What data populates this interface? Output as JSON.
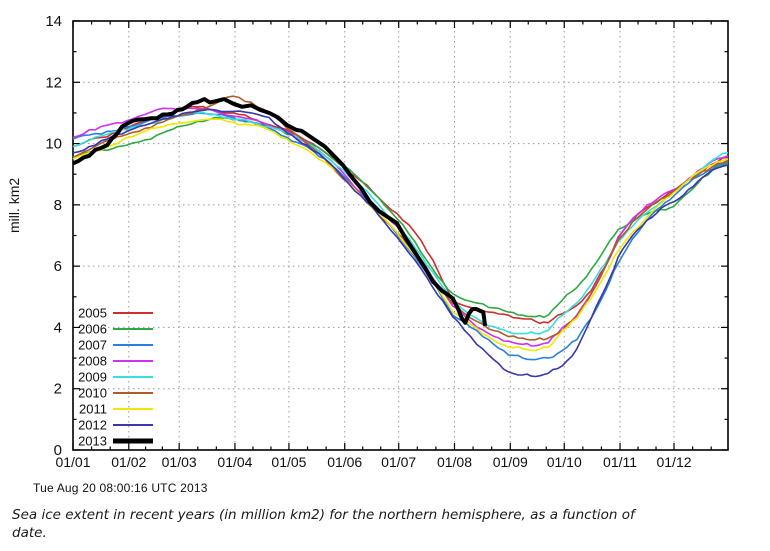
{
  "figure": {
    "background": "#ffffff",
    "footer_timestamp": "Tue Aug 20 08:00:16 UTC 2013",
    "caption": "Sea ice extent in recent years (in million km2) for the northern hemisphere, as a function of date."
  },
  "chart_data": {
    "type": "line",
    "title": "",
    "xlabel": "",
    "ylabel": "mill. km2",
    "ylim": [
      0,
      14
    ],
    "yticks": [
      0,
      2,
      4,
      6,
      8,
      10,
      12,
      14
    ],
    "grid": true,
    "grid_style": "dotted",
    "grid_color": "#9a9a9a",
    "axis_color": "#000000",
    "legend_position": "inside-left-lower",
    "x_axis": {
      "unit": "day-of-year",
      "range": [
        1,
        365
      ],
      "tick_labels": [
        "01/01",
        "01/02",
        "01/03",
        "01/04",
        "01/05",
        "01/06",
        "01/07",
        "01/08",
        "01/09",
        "01/10",
        "01/11",
        "01/12"
      ],
      "tick_days": [
        1,
        32,
        60,
        91,
        121,
        152,
        182,
        213,
        244,
        274,
        305,
        335
      ]
    },
    "series": [
      {
        "name": "2005",
        "color": "#cc2f2f",
        "line_width": 1.6,
        "x": [
          1,
          10,
          20,
          31,
          41,
          51,
          59,
          70,
          80,
          90,
          100,
          110,
          120,
          131,
          141,
          151,
          161,
          171,
          181,
          191,
          201,
          212,
          222,
          232,
          243,
          251,
          258,
          265,
          273,
          281,
          289,
          297,
          304,
          312,
          320,
          328,
          335,
          343,
          351,
          359,
          365
        ],
        "y": [
          9.9,
          10.12,
          10.22,
          10.5,
          10.72,
          10.93,
          11.05,
          11.2,
          11.08,
          11.0,
          10.82,
          10.62,
          10.45,
          10.08,
          9.72,
          9.25,
          8.78,
          8.22,
          7.72,
          7.1,
          6.2,
          4.85,
          4.65,
          4.5,
          4.4,
          4.28,
          4.2,
          4.15,
          4.45,
          4.72,
          5.2,
          6.0,
          6.95,
          7.5,
          7.92,
          8.2,
          8.45,
          8.82,
          9.1,
          9.4,
          9.55
        ]
      },
      {
        "name": "2006",
        "color": "#2eaa44",
        "line_width": 1.6,
        "x": [
          1,
          10,
          20,
          31,
          41,
          51,
          59,
          70,
          80,
          90,
          100,
          110,
          120,
          131,
          141,
          151,
          161,
          171,
          181,
          191,
          201,
          212,
          222,
          232,
          243,
          251,
          258,
          265,
          273,
          281,
          289,
          297,
          304,
          312,
          320,
          328,
          335,
          343,
          351,
          359,
          365
        ],
        "y": [
          9.55,
          9.72,
          9.78,
          9.95,
          10.12,
          10.35,
          10.55,
          10.72,
          10.85,
          10.78,
          10.72,
          10.55,
          10.3,
          10.05,
          9.72,
          9.3,
          8.8,
          8.22,
          7.55,
          6.8,
          5.9,
          5.1,
          4.85,
          4.65,
          4.5,
          4.4,
          4.35,
          4.4,
          4.9,
          5.3,
          5.9,
          6.6,
          7.2,
          7.5,
          7.7,
          7.85,
          7.95,
          8.4,
          8.9,
          9.25,
          9.35
        ]
      },
      {
        "name": "2007",
        "color": "#2a7fdd",
        "line_width": 1.6,
        "x": [
          1,
          10,
          20,
          31,
          41,
          51,
          59,
          70,
          80,
          90,
          100,
          110,
          120,
          131,
          141,
          151,
          161,
          171,
          181,
          191,
          201,
          212,
          222,
          232,
          243,
          251,
          258,
          265,
          273,
          281,
          289,
          297,
          304,
          312,
          320,
          328,
          335,
          343,
          351,
          359,
          365
        ],
        "y": [
          10.15,
          10.28,
          10.4,
          10.55,
          10.7,
          10.85,
          10.9,
          11.0,
          10.95,
          10.85,
          10.7,
          10.5,
          10.2,
          9.9,
          9.5,
          8.95,
          8.35,
          7.72,
          7.05,
          6.3,
          5.5,
          4.4,
          4.0,
          3.6,
          3.1,
          3.0,
          2.95,
          3.0,
          3.25,
          3.6,
          4.3,
          5.2,
          6.1,
          6.9,
          7.5,
          7.95,
          8.3,
          8.7,
          9.0,
          9.3,
          9.4
        ]
      },
      {
        "name": "2008",
        "color": "#cc33ee",
        "line_width": 1.6,
        "x": [
          1,
          10,
          20,
          31,
          41,
          51,
          59,
          70,
          80,
          90,
          100,
          110,
          120,
          131,
          141,
          151,
          161,
          171,
          181,
          191,
          201,
          212,
          222,
          232,
          243,
          251,
          258,
          265,
          273,
          281,
          289,
          297,
          304,
          312,
          320,
          328,
          335,
          343,
          351,
          359,
          365
        ],
        "y": [
          10.2,
          10.45,
          10.6,
          10.75,
          10.95,
          11.15,
          11.1,
          11.15,
          11.05,
          10.9,
          10.8,
          10.6,
          10.4,
          10.05,
          9.6,
          9.05,
          8.4,
          7.8,
          7.3,
          6.5,
          5.6,
          4.7,
          4.2,
          3.8,
          3.55,
          3.45,
          3.4,
          3.5,
          4.0,
          4.4,
          5.1,
          6.0,
          6.9,
          7.55,
          8.0,
          8.3,
          8.5,
          8.85,
          9.2,
          9.5,
          9.6
        ]
      },
      {
        "name": "2009",
        "color": "#3adede",
        "line_width": 1.6,
        "x": [
          1,
          10,
          20,
          31,
          41,
          51,
          59,
          70,
          80,
          90,
          100,
          110,
          120,
          131,
          141,
          151,
          161,
          171,
          181,
          191,
          201,
          212,
          222,
          232,
          243,
          251,
          258,
          265,
          273,
          281,
          289,
          297,
          304,
          312,
          320,
          328,
          335,
          343,
          351,
          359,
          365
        ],
        "y": [
          9.9,
          10.1,
          10.3,
          10.45,
          10.6,
          10.8,
          10.9,
          11.0,
          10.95,
          10.8,
          10.7,
          10.55,
          10.35,
          10.0,
          9.6,
          9.15,
          8.6,
          8.0,
          7.35,
          6.6,
          5.8,
          4.9,
          4.4,
          4.05,
          3.85,
          3.8,
          3.8,
          3.9,
          4.4,
          4.8,
          5.4,
          6.1,
          6.8,
          7.3,
          7.75,
          8.1,
          8.4,
          8.8,
          9.2,
          9.55,
          9.7
        ]
      },
      {
        "name": "2010",
        "color": "#b05a28",
        "line_width": 1.6,
        "x": [
          1,
          10,
          20,
          31,
          41,
          51,
          59,
          70,
          80,
          90,
          100,
          110,
          120,
          131,
          141,
          151,
          161,
          171,
          181,
          191,
          201,
          212,
          222,
          232,
          243,
          251,
          258,
          265,
          273,
          281,
          289,
          297,
          304,
          312,
          320,
          328,
          335,
          343,
          351,
          359,
          365
        ],
        "y": [
          9.5,
          9.8,
          10.1,
          10.3,
          10.5,
          10.7,
          10.9,
          11.1,
          11.3,
          11.55,
          11.35,
          11.0,
          10.5,
          10.0,
          9.5,
          8.85,
          8.3,
          7.7,
          7.1,
          6.4,
          5.6,
          4.8,
          4.3,
          3.95,
          3.7,
          3.65,
          3.6,
          3.65,
          3.9,
          4.35,
          5.1,
          6.0,
          6.85,
          7.45,
          7.85,
          8.2,
          8.45,
          8.8,
          9.1,
          9.35,
          9.45
        ]
      },
      {
        "name": "2011",
        "color": "#f0e800",
        "line_width": 1.6,
        "x": [
          1,
          10,
          20,
          31,
          41,
          51,
          59,
          70,
          80,
          90,
          100,
          110,
          120,
          131,
          141,
          151,
          161,
          171,
          181,
          191,
          201,
          212,
          222,
          232,
          243,
          251,
          258,
          265,
          273,
          281,
          289,
          297,
          304,
          312,
          320,
          328,
          335,
          343,
          351,
          359,
          365
        ],
        "y": [
          9.5,
          9.7,
          9.9,
          10.2,
          10.4,
          10.55,
          10.65,
          10.75,
          10.8,
          10.7,
          10.6,
          10.45,
          10.15,
          9.8,
          9.4,
          8.9,
          8.3,
          7.7,
          7.1,
          6.35,
          5.5,
          4.5,
          4.1,
          3.7,
          3.35,
          3.3,
          3.25,
          3.35,
          3.9,
          4.3,
          4.95,
          5.75,
          6.5,
          7.1,
          7.6,
          8.05,
          8.4,
          8.8,
          9.15,
          9.4,
          9.5
        ]
      },
      {
        "name": "2012",
        "color": "#3838aa",
        "line_width": 1.6,
        "x": [
          1,
          10,
          20,
          31,
          41,
          51,
          59,
          70,
          80,
          90,
          100,
          110,
          120,
          131,
          141,
          151,
          161,
          171,
          181,
          191,
          201,
          212,
          222,
          232,
          243,
          251,
          258,
          265,
          273,
          281,
          289,
          297,
          304,
          312,
          320,
          328,
          335,
          343,
          351,
          359,
          365
        ],
        "y": [
          9.7,
          9.9,
          10.15,
          10.4,
          10.6,
          10.8,
          10.9,
          11.05,
          11.1,
          11.05,
          11.0,
          10.85,
          10.35,
          9.95,
          9.5,
          8.9,
          8.3,
          7.65,
          6.95,
          6.2,
          5.3,
          4.35,
          3.7,
          3.1,
          2.55,
          2.45,
          2.4,
          2.5,
          2.75,
          3.3,
          4.3,
          5.3,
          6.3,
          7.0,
          7.5,
          7.9,
          8.1,
          8.5,
          8.9,
          9.2,
          9.3
        ]
      },
      {
        "name": "2013",
        "color": "#000000",
        "line_width": 4,
        "x": [
          1,
          10,
          20,
          31,
          41,
          51,
          59,
          70,
          74,
          80,
          85,
          90,
          95,
          100,
          105,
          110,
          115,
          120,
          125,
          131,
          136,
          141,
          146,
          151,
          156,
          161,
          166,
          171,
          176,
          181,
          186,
          191,
          196,
          201,
          206,
          212,
          215,
          217,
          219,
          221,
          223,
          225,
          227,
          229,
          230
        ],
        "y": [
          9.35,
          9.6,
          9.95,
          10.65,
          10.8,
          10.95,
          11.1,
          11.35,
          11.45,
          11.38,
          11.45,
          11.3,
          11.2,
          11.25,
          11.1,
          11.0,
          10.85,
          10.6,
          10.45,
          10.3,
          10.1,
          9.9,
          9.6,
          9.3,
          8.9,
          8.55,
          8.1,
          7.8,
          7.6,
          7.4,
          6.9,
          6.45,
          6.0,
          5.5,
          5.2,
          4.95,
          4.6,
          4.3,
          4.15,
          4.45,
          4.6,
          4.6,
          4.55,
          4.5,
          4.05
        ]
      }
    ]
  }
}
